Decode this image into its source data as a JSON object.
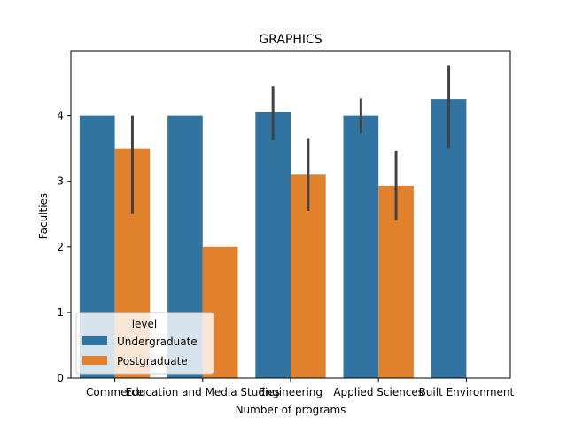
{
  "chart_data": {
    "type": "bar",
    "title": "GRAPHICS",
    "xlabel": "Number of programs",
    "ylabel": "Faculties",
    "categories": [
      "Commerce",
      "Education and Media Studies",
      "Engineering",
      "Applied Sciences",
      "Built Environment"
    ],
    "ylim": [
      0,
      4.98
    ],
    "yticks": [
      0,
      1,
      2,
      3,
      4
    ],
    "grid": false,
    "legend": {
      "title": "level",
      "placement": "lower-left"
    },
    "series": [
      {
        "name": "Undergraduate",
        "color": "#3274a1",
        "values": [
          4.0,
          4.0,
          4.05,
          4.0,
          4.25
        ],
        "ci_low": [
          null,
          null,
          3.63,
          3.74,
          3.5
        ],
        "ci_high": [
          null,
          null,
          4.45,
          4.26,
          4.77
        ]
      },
      {
        "name": "Postgraduate",
        "color": "#e1812c",
        "values": [
          3.5,
          2.0,
          3.1,
          2.93,
          null
        ],
        "ci_low": [
          2.5,
          null,
          2.55,
          2.4,
          null
        ],
        "ci_high": [
          4.0,
          null,
          3.65,
          3.47,
          null
        ]
      }
    ],
    "error_bar_color": "#424242"
  }
}
